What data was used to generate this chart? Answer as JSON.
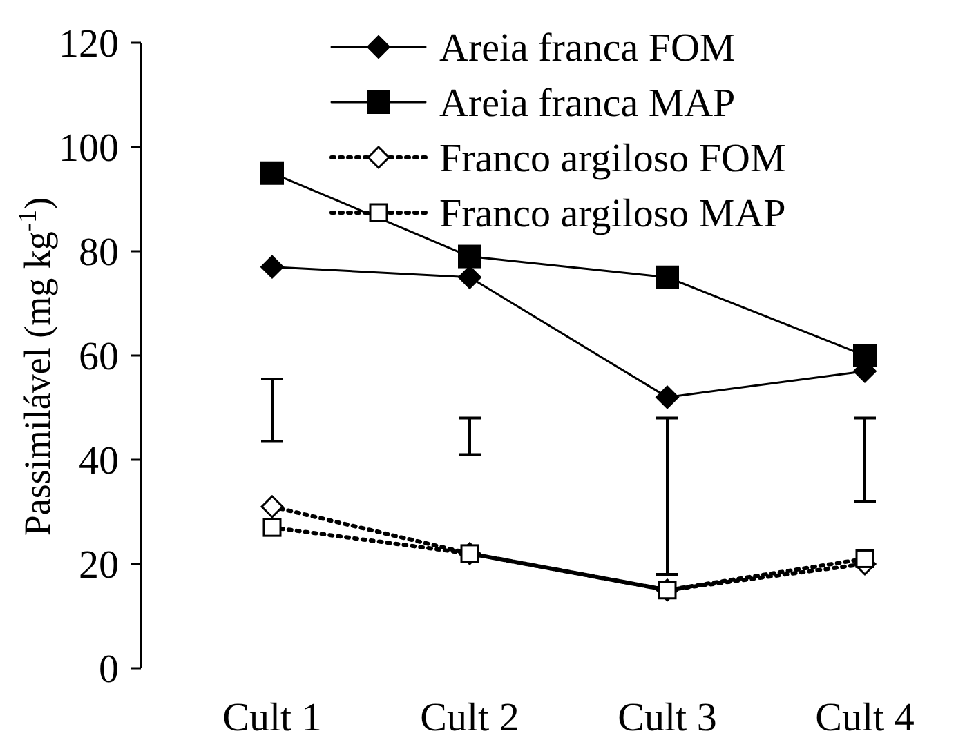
{
  "chart_data": {
    "type": "line",
    "ylabel": "Passimilável (mg kg$^{-1}$)",
    "categories": [
      "Cult 1",
      "Cult 2",
      "Cult 3",
      "Cult 4"
    ],
    "series": [
      {
        "name": "Areia franca FOM",
        "color": "#000000",
        "marker": "diamond",
        "line_style": "solid",
        "values": [
          77,
          75,
          52,
          57
        ]
      },
      {
        "name": "Areia franca MAP",
        "color": "#000000",
        "marker": "square",
        "line_style": "solid",
        "values": [
          95,
          79,
          75,
          60
        ]
      },
      {
        "name": "Franco argiloso FOM",
        "color": "#000000",
        "marker": "diamond",
        "line_style": "dotted",
        "values": [
          31,
          22,
          15,
          20
        ]
      },
      {
        "name": "Franco argiloso MAP",
        "color": "#000000",
        "marker": "square",
        "line_style": "dotted",
        "values": [
          27,
          22,
          15,
          21
        ]
      },
      {
        "type": "bar",
        "color": "#000000",
        "base": [
          43.5,
          41,
          18,
          32
        ],
        "values": [
          12,
          7,
          30,
          16
        ]
      }
    ],
    "ylim": [
      0,
      120
    ],
    "yticks": [
      0,
      20,
      40,
      60,
      80,
      100,
      120
    ],
    "grid": false,
    "legend": "top right"
  }
}
